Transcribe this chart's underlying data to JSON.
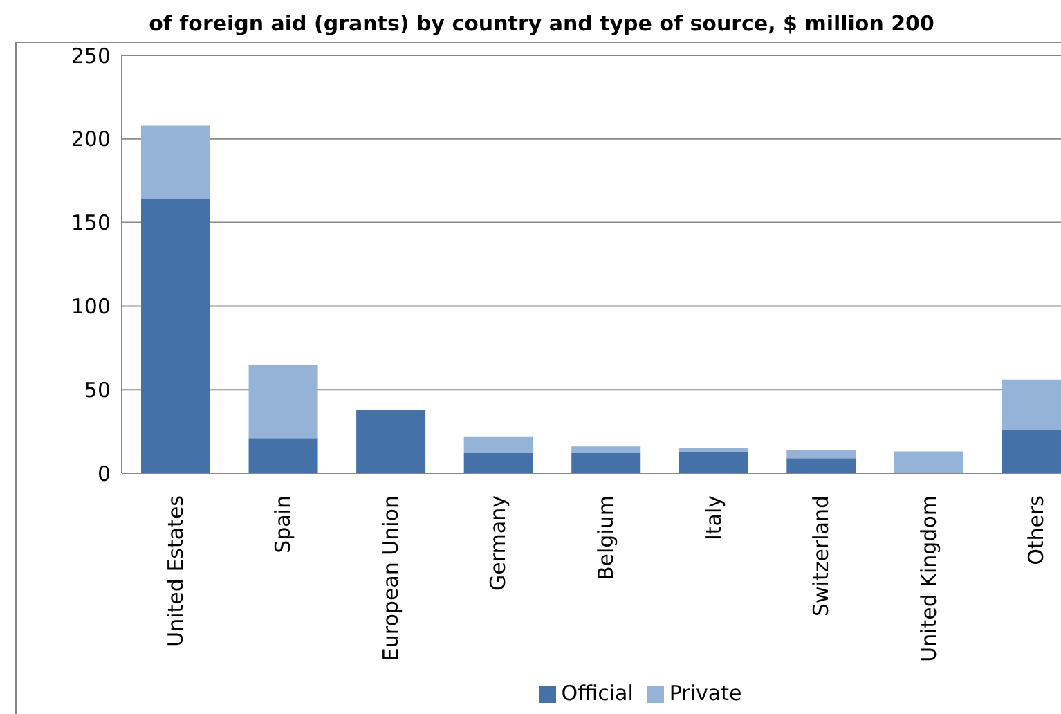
{
  "chart_data": {
    "type": "bar",
    "title": "of foreign aid (grants) by country and type of source, $ million 200",
    "categories": [
      "United Estates",
      "Spain",
      "European Union",
      "Germany",
      "Belgium",
      "Italy",
      "Switzerland",
      "United Kingdom",
      "Others"
    ],
    "series": [
      {
        "name": "Official",
        "color": "#4472a8",
        "values": [
          164,
          21,
          38,
          12,
          12,
          13,
          9,
          0,
          26
        ]
      },
      {
        "name": "Private",
        "color": "#95b3d7",
        "values": [
          44,
          44,
          0,
          10,
          4,
          2,
          5,
          13,
          30
        ]
      }
    ],
    "stacked": true,
    "ylim": [
      0,
      250
    ],
    "yticks": [
      0,
      50,
      100,
      150,
      200,
      250
    ],
    "grid": "y",
    "legend": "bottom"
  }
}
